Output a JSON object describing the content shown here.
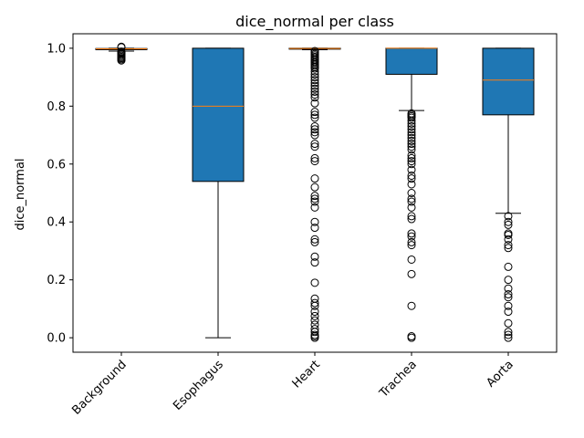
{
  "chart_data": {
    "type": "box",
    "title": "dice_normal per class",
    "xlabel": "",
    "ylabel": "dice_normal",
    "ylim": [
      -0.05,
      1.05
    ],
    "yticks": [
      "0.0",
      "0.2",
      "0.4",
      "0.6",
      "0.8",
      "1.0"
    ],
    "categories": [
      "Background",
      "Esophagus",
      "Heart",
      "Trachea",
      "Aorta"
    ],
    "colors": {
      "box_fill": "#1f77b4",
      "median": "#ff7f0e",
      "whisker": "#000000"
    },
    "boxes": [
      {
        "label": "Background",
        "whisker_low": 0.99,
        "q1": 0.995,
        "median": 0.998,
        "q3": 0.999,
        "whisker_high": 1.0,
        "outliers": [
          0.958,
          0.962,
          0.966,
          0.97,
          0.974,
          0.978,
          0.982,
          0.985,
          0.988,
          1.003,
          1.005
        ]
      },
      {
        "label": "Esophagus",
        "whisker_low": 0.0,
        "q1": 0.54,
        "median": 0.8,
        "q3": 1.0,
        "whisker_high": 1.0,
        "outliers": []
      },
      {
        "label": "Heart",
        "whisker_low": 0.995,
        "q1": 0.998,
        "median": 0.999,
        "q3": 1.0,
        "whisker_high": 1.0,
        "outliers": [
          0.0,
          0.005,
          0.01,
          0.02,
          0.03,
          0.045,
          0.06,
          0.075,
          0.09,
          0.11,
          0.12,
          0.135,
          0.19,
          0.26,
          0.28,
          0.33,
          0.34,
          0.38,
          0.4,
          0.45,
          0.47,
          0.48,
          0.49,
          0.52,
          0.55,
          0.61,
          0.62,
          0.66,
          0.67,
          0.7,
          0.71,
          0.72,
          0.73,
          0.76,
          0.77,
          0.78,
          0.81,
          0.83,
          0.84,
          0.85,
          0.86,
          0.87,
          0.88,
          0.89,
          0.9,
          0.91,
          0.92,
          0.93,
          0.935,
          0.94,
          0.945,
          0.95,
          0.955,
          0.96,
          0.965,
          0.97,
          0.975,
          0.98,
          0.985,
          0.99
        ]
      },
      {
        "label": "Trachea",
        "whisker_low": 0.785,
        "q1": 0.91,
        "median": 1.0,
        "q3": 1.0,
        "whisker_high": 1.0,
        "outliers": [
          0.0,
          0.005,
          0.11,
          0.22,
          0.27,
          0.32,
          0.33,
          0.35,
          0.36,
          0.41,
          0.42,
          0.45,
          0.47,
          0.48,
          0.5,
          0.53,
          0.55,
          0.56,
          0.58,
          0.6,
          0.61,
          0.62,
          0.63,
          0.65,
          0.66,
          0.67,
          0.68,
          0.69,
          0.7,
          0.71,
          0.72,
          0.73,
          0.74,
          0.75,
          0.76,
          0.765,
          0.77,
          0.775
        ]
      },
      {
        "label": "Aorta",
        "whisker_low": 0.43,
        "q1": 0.77,
        "median": 0.89,
        "q3": 1.0,
        "whisker_high": 1.0,
        "outliers": [
          0.0,
          0.01,
          0.02,
          0.05,
          0.09,
          0.11,
          0.14,
          0.15,
          0.17,
          0.2,
          0.245,
          0.31,
          0.32,
          0.34,
          0.355,
          0.36,
          0.39,
          0.4,
          0.42
        ]
      }
    ]
  }
}
